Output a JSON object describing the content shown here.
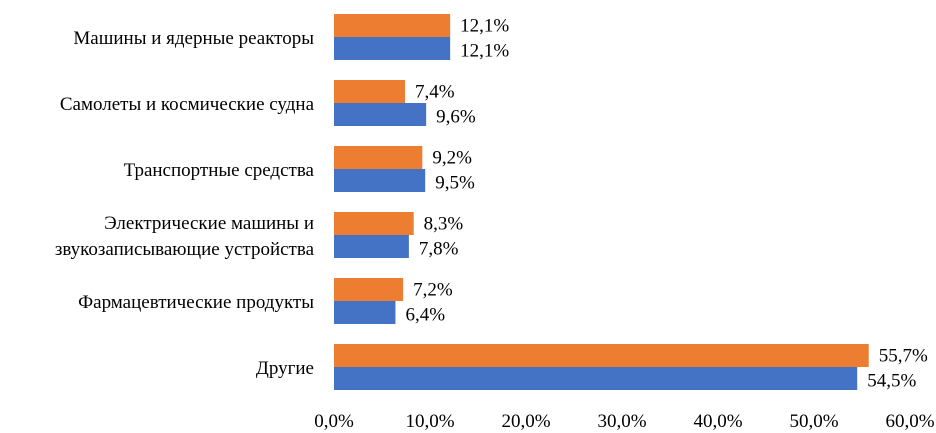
{
  "chart_data": {
    "type": "bar",
    "orientation": "horizontal",
    "categories": [
      [
        "Машины и ядерные реакторы"
      ],
      [
        "Самолеты и космические судна"
      ],
      [
        "Транспортные средства"
      ],
      [
        "Электрические машины и",
        "звукозаписывающие устройства"
      ],
      [
        "Фармацевтические продукты"
      ],
      [
        "Другие"
      ]
    ],
    "series": [
      {
        "color": "#ED7D31",
        "values": [
          12.1,
          7.4,
          9.2,
          8.3,
          7.2,
          55.7
        ],
        "labels": [
          "12,1%",
          "7,4%",
          "9,2%",
          "8,3%",
          "7,2%",
          "55,7%"
        ]
      },
      {
        "color": "#4472C4",
        "values": [
          12.1,
          9.6,
          9.5,
          7.8,
          6.4,
          54.5
        ],
        "labels": [
          "12,1%",
          "9,6%",
          "9,5%",
          "7,8%",
          "6,4%",
          "54,5%"
        ]
      }
    ],
    "xlim": [
      0,
      60
    ],
    "xticks": [
      0,
      10,
      20,
      30,
      40,
      50,
      60
    ],
    "xtick_labels": [
      "0,0%",
      "10,0%",
      "20,0%",
      "30,0%",
      "40,0%",
      "50,0%",
      "60,0%"
    ],
    "title": "",
    "xlabel": "",
    "ylabel": "",
    "grid": false,
    "legend": false
  }
}
